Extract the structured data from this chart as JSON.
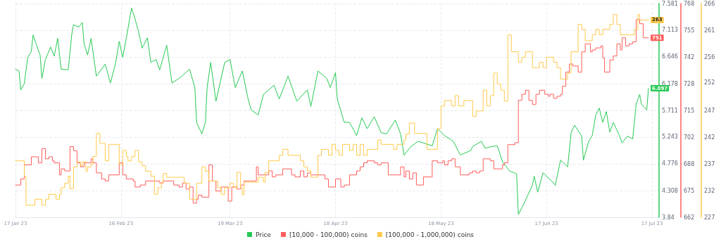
{
  "chart_data": {
    "type": "line",
    "grid": true,
    "legend": "bottom",
    "marker": "none",
    "line_style": "solid",
    "xlim": [
      "2023-01-17",
      "2023-07-19"
    ],
    "xticks": [
      {
        "value": "2023-01-17",
        "label": "17 Jan 23"
      },
      {
        "value": "2023-02-16",
        "label": "16 Feb 23"
      },
      {
        "value": "2023-03-19",
        "label": "19 Mar 23"
      },
      {
        "value": "2023-04-18",
        "label": "18 Apr 23"
      },
      {
        "value": "2023-05-18",
        "label": "18 May 23"
      },
      {
        "value": "2023-06-17",
        "label": "17 Jun 23"
      },
      {
        "value": "2023-07-17",
        "label": "17 Jul 23"
      }
    ],
    "ylim": [
      3.84,
      7.581
    ],
    "yticks": [
      3.84,
      {
        "value": 4.3076,
        "label": "4.308"
      },
      {
        "value": 4.7758,
        "label": "4.776"
      },
      {
        "value": 5.2429,
        "label": "5.243"
      },
      {
        "value": 5.7105,
        "label": "5.711"
      },
      {
        "value": 6.1781,
        "label": "6.178"
      },
      {
        "value": 6.6458,
        "label": "6.646"
      },
      {
        "value": 7.1134,
        "label": "7.113"
      },
      7.581
    ],
    "y2lim": [
      662,
      768
    ],
    "y2ticks": [
      662,
      {
        "value": 675.25,
        "label": "675"
      },
      {
        "value": 688.4,
        "label": "688"
      },
      {
        "value": 701.75,
        "label": "702"
      },
      715,
      {
        "value": 728.25,
        "label": "728"
      },
      {
        "value": 741.5,
        "label": "742"
      },
      {
        "value": 754.75,
        "label": "755"
      },
      768
    ],
    "y3lim": [
      227,
      266
    ],
    "y3ticks": [
      227,
      {
        "value": 231.875,
        "label": "232"
      },
      {
        "value": 236.75,
        "label": "237"
      },
      {
        "value": 241.625,
        "label": "242"
      },
      {
        "value": 246.5,
        "label": "247"
      },
      {
        "value": 251.6,
        "label": "252"
      },
      {
        "value": 256.25,
        "label": "256"
      },
      {
        "value": 261.125,
        "label": "261"
      },
      266
    ],
    "series": [
      {
        "name": "Price",
        "color": "#26c953",
        "x": [
          "2023-01-17",
          "2023-01-18",
          "2023-01-18T12:00",
          "2023-01-19T12:00",
          "2023-01-20T12:00",
          "2023-01-21T12:00",
          "2023-01-22",
          "2023-01-23",
          "2023-01-24",
          "2023-01-24T12:00",
          "2023-01-25T12:00",
          "2023-01-27",
          "2023-01-28",
          "2023-01-29",
          "2023-01-30",
          "2023-02-01",
          "2023-02-02",
          "2023-02-02T12:00",
          "2023-02-04",
          "2023-02-05",
          "2023-02-05T12:00",
          "2023-02-06T12:00",
          "2023-02-07T12:00",
          "2023-02-09",
          "2023-02-11T12:00",
          "2023-02-13",
          "2023-02-14T12:00",
          "2023-02-15T12:00",
          "2023-02-16T12:00",
          "2023-02-17T12:00",
          "2023-02-19",
          "2023-02-20",
          "2023-02-21",
          "2023-02-22",
          "2023-02-23T12:00",
          "2023-02-24T12:00",
          "2023-02-26",
          "2023-02-27",
          "2023-03-01",
          "2023-03-02T12:00",
          "2023-03-04T12:00",
          "2023-03-07T12:00",
          "2023-03-09",
          "2023-03-09T12:00",
          "2023-03-11",
          "2023-03-12",
          "2023-03-12T12:00",
          "2023-03-13T12:00",
          "2023-03-15",
          "2023-03-17T12:00",
          "2023-03-19",
          "2023-03-20T12:00",
          "2023-03-22T12:00",
          "2023-03-24",
          "2023-03-25",
          "2023-03-27",
          "2023-03-28T12:00",
          "2023-03-31T12:00",
          "2023-04-02",
          "2023-04-04T12:00",
          "2023-04-07",
          "2023-04-10",
          "2023-04-11",
          "2023-04-13",
          "2023-04-15T12:00",
          "2023-04-16T12:00",
          "2023-04-18",
          "2023-04-18T12:00",
          "2023-04-20T12:00",
          "2023-04-22",
          "2023-04-24",
          "2023-04-25T12:00",
          "2023-04-27",
          "2023-04-29",
          "2023-05-01",
          "2023-05-02T12:00",
          "2023-05-05",
          "2023-05-06T12:00",
          "2023-05-07T12:00",
          "2023-05-09T12:00",
          "2023-05-11T12:00",
          "2023-05-13",
          "2023-05-15T12:00",
          "2023-05-17",
          "2023-05-19",
          "2023-05-21T12:00",
          "2023-05-23T12:00",
          "2023-05-26T12:00",
          "2023-05-27",
          "2023-05-29T12:00",
          "2023-05-30T12:00",
          "2023-06-01T12:00",
          "2023-06-03",
          "2023-06-04T12:00",
          "2023-06-06T12:00",
          "2023-06-08T12:00",
          "2023-06-09",
          "2023-06-10T12:00",
          "2023-06-13",
          "2023-06-13T12:00",
          "2023-06-14T12:00",
          "2023-06-16",
          "2023-06-19",
          "2023-06-19T12:00",
          "2023-06-21",
          "2023-06-23",
          "2023-06-24",
          "2023-06-25",
          "2023-06-27",
          "2023-06-27T12:00",
          "2023-06-29",
          "2023-06-30",
          "2023-07-01",
          "2023-07-02",
          "2023-07-03",
          "2023-07-04",
          "2023-07-05",
          "2023-07-06",
          "2023-07-07T12:00",
          "2023-07-08T12:00",
          "2023-07-10",
          "2023-07-11T12:00",
          "2023-07-12T12:00",
          "2023-07-13T12:00",
          "2023-07-14",
          "2023-07-15",
          "2023-07-15T12:00",
          "2023-07-16"
        ],
        "values": [
          6.43,
          6.4,
          6.07,
          6.18,
          6.64,
          6.74,
          7.03,
          6.85,
          6.68,
          6.27,
          6.6,
          6.82,
          6.66,
          6.97,
          6.43,
          6.42,
          7.04,
          7.21,
          7.17,
          7.25,
          6.88,
          6.68,
          6.97,
          6.31,
          6.52,
          6.19,
          6.55,
          6.92,
          6.64,
          6.97,
          7.5,
          7.31,
          7.09,
          6.8,
          6.98,
          6.55,
          6.6,
          6.42,
          6.85,
          6.19,
          6.27,
          6.43,
          6.11,
          5.5,
          5.3,
          5.5,
          6.11,
          6.55,
          5.87,
          6.55,
          6.6,
          6.11,
          6.4,
          5.95,
          5.72,
          5.63,
          5.99,
          6.15,
          5.91,
          6.31,
          5.87,
          6.07,
          5.78,
          6.4,
          6.27,
          6.11,
          6.37,
          5.91,
          5.5,
          5.5,
          5.27,
          5.58,
          5.39,
          5.6,
          5.32,
          5.3,
          5.54,
          5.3,
          4.93,
          5.08,
          5.17,
          5.14,
          5.09,
          5.39,
          5.27,
          5.17,
          4.93,
          5.01,
          5.08,
          5.17,
          5.05,
          5.08,
          5.09,
          4.81,
          4.65,
          4.6,
          3.89,
          4.07,
          4.4,
          4.56,
          4.28,
          4.62,
          4.44,
          4.4,
          4.84,
          4.72,
          5.32,
          5.45,
          5.26,
          4.84,
          5.17,
          5.27,
          5.63,
          5.75,
          5.5,
          5.69,
          5.33,
          5.5,
          5.3,
          5.14,
          5.26,
          5.21,
          5.82,
          5.99,
          5.82,
          5.75,
          5.72,
          6.097
        ],
        "value_labels": [
          null,
          null,
          null,
          null,
          null,
          null,
          null,
          null,
          null,
          null,
          null,
          null,
          null,
          null,
          null,
          null,
          null,
          null,
          null,
          null,
          null,
          null,
          null,
          null,
          null,
          null,
          null,
          null,
          null,
          null,
          null,
          null,
          null,
          null,
          null,
          null,
          null,
          null,
          null,
          null,
          null,
          null,
          null,
          null,
          null,
          null,
          null,
          null,
          null,
          null,
          null,
          null,
          null,
          null,
          null,
          null,
          null,
          null,
          null,
          null,
          null,
          null,
          null,
          null,
          null,
          null,
          null,
          null,
          null,
          null,
          null,
          null,
          null,
          null,
          null,
          null,
          null,
          null,
          null,
          null,
          null,
          null,
          null,
          null,
          null,
          null,
          null,
          null,
          null,
          null,
          null,
          null,
          null,
          null,
          null,
          null,
          null,
          null,
          null,
          null,
          null,
          null,
          null,
          null,
          null,
          null,
          null,
          null,
          null,
          null,
          null,
          null,
          null,
          null,
          null,
          null,
          null,
          null,
          null,
          null,
          null,
          null,
          null,
          null,
          null,
          null,
          null,
          "6.097"
        ]
      },
      {
        "name": "[10,000 - 100,000) coins",
        "type": "step",
        "axis": "y2",
        "color": "#ff5e5b",
        "x": [
          "2023-01-17",
          "2023-01-18T12:00",
          "2023-01-19T12:00",
          "2023-01-21T12:00",
          "2023-01-23T12:00",
          "2023-01-24T12:00",
          "2023-01-25T12:00",
          "2023-01-26T12:00",
          "2023-01-27T12:00",
          "2023-01-28",
          "2023-01-29T12:00",
          "2023-01-30",
          "2023-01-31",
          "2023-02-01T12:00",
          "2023-02-02T12:00",
          "2023-02-03T12:00",
          "2023-02-04T12:00",
          "2023-02-05T12:00",
          "2023-02-07T12:00",
          "2023-02-08",
          "2023-02-09",
          "2023-02-10T12:00",
          "2023-02-11T12:00",
          "2023-02-12T12:00",
          "2023-02-15T12:00",
          "2023-02-16T12:00",
          "2023-02-17T12:00",
          "2023-02-19T12:00",
          "2023-02-20",
          "2023-02-21T12:00",
          "2023-02-23",
          "2023-02-27",
          "2023-02-28",
          "2023-03-03",
          "2023-03-04T12:00",
          "2023-03-05T12:00",
          "2023-03-06T12:00",
          "2023-03-07T12:00",
          "2023-03-08T12:00",
          "2023-03-09T12:00",
          "2023-03-10",
          "2023-03-11",
          "2023-03-13",
          "2023-03-14",
          "2023-03-15",
          "2023-03-16T12:00",
          "2023-03-18T12:00",
          "2023-03-19T12:00",
          "2023-03-21",
          "2023-03-22",
          "2023-03-23",
          "2023-03-26T12:00",
          "2023-03-27",
          "2023-03-30",
          "2023-03-31",
          "2023-04-01",
          "2023-04-03",
          "2023-04-05T12:00",
          "2023-04-06T12:00",
          "2023-04-08",
          "2023-04-09",
          "2023-04-10",
          "2023-04-11",
          "2023-04-15",
          "2023-04-16",
          "2023-04-18",
          "2023-04-19T12:00",
          "2023-04-20T12:00",
          "2023-04-22",
          "2023-04-24",
          "2023-04-25",
          "2023-04-26",
          "2023-04-27",
          "2023-04-29",
          "2023-04-30",
          "2023-05-01",
          "2023-05-03",
          "2023-05-06T12:00",
          "2023-05-07T12:00",
          "2023-05-08",
          "2023-05-09",
          "2023-05-10",
          "2023-05-11",
          "2023-05-13",
          "2023-05-15T12:00",
          "2023-05-17",
          "2023-05-18T12:00",
          "2023-05-19",
          "2023-05-20",
          "2023-05-21",
          "2023-05-22",
          "2023-05-23T12:00",
          "2023-05-26",
          "2023-05-27",
          "2023-05-28",
          "2023-05-29",
          "2023-05-30",
          "2023-06-01",
          "2023-06-02",
          "2023-06-04T12:00",
          "2023-06-05",
          "2023-06-06",
          "2023-06-08",
          "2023-06-09",
          "2023-06-10",
          "2023-06-11",
          "2023-06-12",
          "2023-06-13",
          "2023-06-14",
          "2023-06-15",
          "2023-06-16T12:00",
          "2023-06-17T12:00",
          "2023-06-18",
          "2023-06-19",
          "2023-06-20",
          "2023-06-21",
          "2023-06-21T12:00",
          "2023-06-22T12:00",
          "2023-06-23T12:00",
          "2023-06-24T12:00",
          "2023-06-26",
          "2023-06-27",
          "2023-06-28",
          "2023-06-29T12:00",
          "2023-06-30",
          "2023-07-01",
          "2023-07-02T12:00",
          "2023-07-03",
          "2023-07-03T12:00",
          "2023-07-05",
          "2023-07-06",
          "2023-07-07",
          "2023-07-08",
          "2023-07-08T12:00",
          "2023-07-09T12:00",
          "2023-07-10T12:00",
          "2023-07-11T12:00",
          "2023-07-12T12:00",
          "2023-07-13T12:00",
          "2023-07-14T12:00",
          "2023-07-16"
        ],
        "values": [
          678,
          681,
          688,
          692,
          689,
          696,
          691,
          692,
          690,
          689,
          683,
          686,
          685,
          697,
          695,
          689,
          687,
          689,
          691,
          689,
          684,
          681,
          680,
          683,
          689,
          683,
          681,
          680,
          677,
          678,
          680,
          679,
          680,
          678,
          677,
          679,
          676,
          677,
          669,
          671,
          673,
          672,
          688,
          680,
          675,
          677,
          670,
          677,
          676,
          678,
          680,
          687,
          683,
          685,
          682,
          683,
          686,
          683,
          682,
          685,
          682,
          684,
          683,
          681,
          677,
          681,
          677,
          678,
          683,
          685,
          687,
          689,
          690,
          689,
          688,
          689,
          683,
          687,
          682,
          685,
          681,
          684,
          678,
          682,
          690,
          689,
          690,
          688,
          690,
          691,
          687,
          683,
          684,
          685,
          684,
          685,
          691,
          690,
          686,
          688,
          689,
          698,
          699,
          720,
          723,
          725,
          720,
          718,
          723,
          725,
          723,
          722,
          723,
          721,
          722,
          723,
          727,
          734,
          738,
          737,
          734,
          744,
          748,
          744,
          745,
          746,
          747,
          741,
          734,
          740,
          742,
          748,
          745,
          751,
          747,
          748,
          749,
          760,
          758,
          751,
          751
        ],
        "value_labels": [
          null,
          null,
          null,
          null,
          null,
          null,
          null,
          null,
          null,
          null,
          null,
          null,
          null,
          null,
          null,
          null,
          null,
          null,
          null,
          null,
          null,
          null,
          null,
          null,
          null,
          null,
          null,
          null,
          null,
          null,
          null,
          null,
          null,
          null,
          null,
          null,
          null,
          null,
          null,
          null,
          null,
          null,
          null,
          null,
          null,
          null,
          null,
          null,
          null,
          null,
          null,
          null,
          null,
          null,
          null,
          null,
          null,
          null,
          null,
          null,
          null,
          null,
          null,
          null,
          null,
          null,
          null,
          null,
          null,
          null,
          null,
          null,
          null,
          null,
          null,
          null,
          null,
          null,
          null,
          null,
          null,
          null,
          null,
          null,
          null,
          null,
          null,
          null,
          null,
          null,
          null,
          null,
          null,
          null,
          null,
          null,
          null,
          null,
          null,
          null,
          null,
          null,
          null,
          null,
          null,
          null,
          null,
          null,
          null,
          null,
          null,
          null,
          null,
          null,
          null,
          null,
          null,
          null,
          null,
          null,
          null,
          null,
          null,
          null,
          null,
          null,
          null,
          null,
          null,
          null,
          null,
          null,
          null,
          null,
          null,
          null,
          null,
          null,
          null,
          null,
          "751"
        ]
      },
      {
        "name": "[100,000 - 1,000,000) coins",
        "type": "step",
        "axis": "y3",
        "color": "#ffc94a",
        "x": [
          "2023-01-17",
          "2023-01-19T12:00",
          "2023-01-20",
          "2023-01-22T12:00",
          "2023-01-24T12:00",
          "2023-01-25T12:00",
          "2023-01-26T12:00",
          "2023-01-28T12:00",
          "2023-01-29T12:00",
          "2023-01-30",
          "2023-01-31",
          "2023-02-01",
          "2023-02-01T12:00",
          "2023-02-02T12:00",
          "2023-02-03T12:00",
          "2023-02-04T12:00",
          "2023-02-05",
          "2023-02-06",
          "2023-02-06T12:00",
          "2023-02-07T12:00",
          "2023-02-08",
          "2023-02-09",
          "2023-02-10",
          "2023-02-11T12:00",
          "2023-02-12T12:00",
          "2023-02-15T12:00",
          "2023-02-16T12:00",
          "2023-02-17T12:00",
          "2023-02-18",
          "2023-02-19",
          "2023-02-20",
          "2023-02-21",
          "2023-02-22",
          "2023-02-23",
          "2023-02-24T12:00",
          "2023-02-25T12:00",
          "2023-02-26T12:00",
          "2023-02-27T12:00",
          "2023-02-28",
          "2023-03-01",
          "2023-03-06",
          "2023-03-07T12:00",
          "2023-03-09T12:00",
          "2023-03-11",
          "2023-03-12",
          "2023-03-13",
          "2023-03-15T12:00",
          "2023-03-16T12:00",
          "2023-03-17T12:00",
          "2023-03-19",
          "2023-03-20",
          "2023-03-21",
          "2023-03-22",
          "2023-03-22T12:00",
          "2023-03-23",
          "2023-03-27",
          "2023-03-28T12:00",
          "2023-03-29",
          "2023-03-30",
          "2023-04-02",
          "2023-04-03",
          "2023-04-04T12:00",
          "2023-04-08",
          "2023-04-09",
          "2023-04-10",
          "2023-04-11",
          "2023-04-13",
          "2023-04-14",
          "2023-04-16",
          "2023-04-17",
          "2023-04-18",
          "2023-04-19",
          "2023-04-20",
          "2023-04-22",
          "2023-04-23",
          "2023-04-24",
          "2023-04-25",
          "2023-04-26",
          "2023-04-27",
          "2023-04-30",
          "2023-05-01",
          "2023-05-04T12:00",
          "2023-05-05T12:00",
          "2023-05-07T12:00",
          "2023-05-08",
          "2023-05-09",
          "2023-05-10T12:00",
          "2023-05-14",
          "2023-05-17",
          "2023-05-18",
          "2023-05-19",
          "2023-05-21",
          "2023-05-22",
          "2023-05-23",
          "2023-05-24T12:00",
          "2023-05-27",
          "2023-05-28",
          "2023-05-30",
          "2023-05-31",
          "2023-06-01",
          "2023-06-02",
          "2023-06-03",
          "2023-06-04",
          "2023-06-05",
          "2023-06-06",
          "2023-06-07",
          "2023-06-09",
          "2023-06-10",
          "2023-06-11",
          "2023-06-13",
          "2023-06-15",
          "2023-06-16",
          "2023-06-17",
          "2023-06-19",
          "2023-06-20",
          "2023-06-21",
          "2023-06-23",
          "2023-06-24",
          "2023-06-26",
          "2023-06-27",
          "2023-06-28",
          "2023-06-30",
          "2023-07-01",
          "2023-07-02",
          "2023-07-03",
          "2023-07-05",
          "2023-07-06",
          "2023-07-07",
          "2023-07-08",
          "2023-07-12",
          "2023-07-13",
          "2023-07-13T12:00",
          "2023-07-16"
        ],
        "values": [
          237.3,
          234.5,
          229.2,
          230.3,
          229.2,
          230.3,
          231.2,
          230.3,
          231.2,
          232.4,
          233.2,
          234.5,
          232.2,
          236.2,
          237.1,
          236.4,
          237.1,
          235.4,
          236.2,
          236.7,
          238.1,
          242.3,
          240.5,
          237.3,
          240.3,
          236.7,
          239.2,
          238.1,
          237.3,
          238.1,
          239.2,
          237.1,
          236.4,
          235.4,
          234.5,
          231.2,
          232.4,
          233.4,
          235.0,
          234.3,
          233.2,
          230.3,
          233.2,
          236.2,
          235.4,
          233.6,
          232.4,
          231.2,
          232.4,
          233.2,
          232.4,
          235.2,
          232.4,
          231.1,
          233.4,
          234.3,
          233.4,
          235.2,
          237.3,
          238.3,
          239.4,
          238.3,
          237.3,
          236.2,
          235.5,
          234.3,
          238.3,
          239.4,
          238.3,
          240.3,
          239.2,
          238.3,
          240.3,
          239.2,
          240.3,
          238.3,
          240.3,
          238.3,
          239.4,
          241.1,
          240.3,
          239.4,
          240.3,
          241.1,
          242.2,
          244.2,
          242.3,
          239.4,
          243.2,
          247.3,
          248.3,
          247.3,
          249.2,
          247.3,
          248.3,
          245.4,
          246.4,
          250.2,
          247.3,
          249.2,
          253.3,
          251.3,
          250.2,
          248.2,
          260.3,
          257.2,
          255.3,
          256.2,
          257.2,
          254.3,
          255.3,
          254.3,
          256.2,
          255.3,
          254.3,
          252.2,
          253.3,
          257.2,
          262.2,
          261.3,
          259.2,
          260.3,
          261.3,
          260.3,
          261.3,
          262.2,
          264,
          262.2,
          260.3,
          261.3,
          264,
          263,
          263
        ],
        "value_labels": [
          null,
          null,
          null,
          null,
          null,
          null,
          null,
          null,
          null,
          null,
          null,
          null,
          null,
          null,
          null,
          null,
          null,
          null,
          null,
          null,
          null,
          null,
          null,
          null,
          null,
          null,
          null,
          null,
          null,
          null,
          null,
          null,
          null,
          null,
          null,
          null,
          null,
          null,
          null,
          null,
          null,
          null,
          null,
          null,
          null,
          null,
          null,
          null,
          null,
          null,
          null,
          null,
          null,
          null,
          null,
          null,
          null,
          null,
          null,
          null,
          null,
          null,
          null,
          null,
          null,
          null,
          null,
          null,
          null,
          null,
          null,
          null,
          null,
          null,
          null,
          null,
          null,
          null,
          null,
          null,
          null,
          null,
          null,
          null,
          null,
          null,
          null,
          null,
          null,
          null,
          null,
          null,
          null,
          null,
          null,
          null,
          null,
          null,
          null,
          null,
          null,
          null,
          null,
          null,
          null,
          null,
          null,
          null,
          null,
          null,
          null,
          null,
          null,
          null,
          null,
          null,
          null,
          null,
          null,
          null,
          null,
          null,
          null,
          null,
          null,
          null,
          null,
          null,
          null,
          null,
          null,
          null,
          "263"
        ]
      }
    ]
  }
}
